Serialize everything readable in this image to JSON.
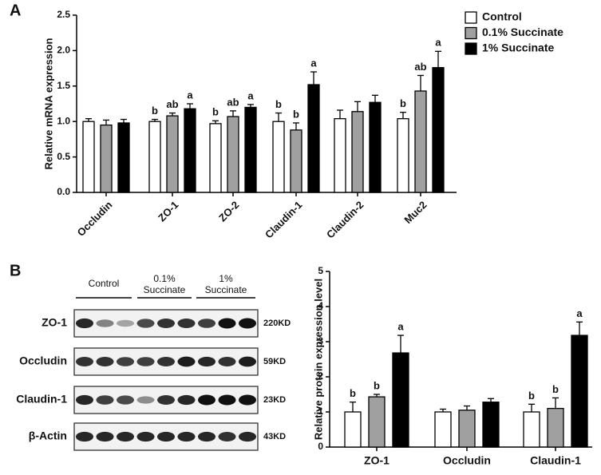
{
  "panels": {
    "a": "A",
    "b": "B"
  },
  "chart_data": [
    {
      "type": "bar",
      "y_label": "Relative mRNA expression",
      "categories": [
        "Occludin",
        "ZO-1",
        "ZO-2",
        "Claudin-1",
        "Claudin-2",
        "Muc2"
      ],
      "series": [
        {
          "name": "Control",
          "color": "#ffffff",
          "values": [
            1.0,
            1.0,
            0.97,
            1.0,
            1.04,
            1.04
          ],
          "errors": [
            0.04,
            0.03,
            0.04,
            0.12,
            0.12,
            0.09
          ],
          "letters": [
            null,
            "b",
            "b",
            "b",
            null,
            "b"
          ]
        },
        {
          "name": "0.1% Succinate",
          "color": "#a0a0a0",
          "values": [
            0.95,
            1.08,
            1.07,
            0.88,
            1.14,
            1.43
          ],
          "errors": [
            0.07,
            0.04,
            0.08,
            0.1,
            0.14,
            0.22
          ],
          "letters": [
            null,
            "ab",
            "ab",
            "b",
            null,
            "ab"
          ]
        },
        {
          "name": "1% Succinate",
          "color": "#000000",
          "values": [
            0.98,
            1.18,
            1.2,
            1.52,
            1.27,
            1.76
          ],
          "errors": [
            0.05,
            0.07,
            0.04,
            0.18,
            0.1,
            0.23
          ],
          "letters": [
            null,
            "a",
            "a",
            "a",
            null,
            "a"
          ]
        }
      ],
      "ylim": [
        0,
        2.5
      ],
      "yticks": [
        {
          "value": 0,
          "label": "0.0"
        },
        0.5,
        {
          "value": 1,
          "label": "1.0"
        },
        1.5,
        {
          "value": 2,
          "label": "2.0"
        },
        2.5
      ],
      "legend": "upper right"
    },
    {
      "type": "bar",
      "y_label": "Relative protein expression level",
      "categories": [
        "ZO-1",
        "Occludin",
        "Claudin-1"
      ],
      "series": [
        {
          "color": "#ffffff",
          "values": [
            1.0,
            1.0,
            1.0
          ],
          "errors": [
            0.28,
            0.08,
            0.22
          ],
          "letters": [
            "b",
            null,
            "b"
          ]
        },
        {
          "color": "#a0a0a0",
          "values": [
            1.43,
            1.05,
            1.1
          ],
          "errors": [
            0.07,
            0.12,
            0.3
          ],
          "letters": [
            "b",
            null,
            "b"
          ]
        },
        {
          "color": "#000000",
          "values": [
            2.68,
            1.28,
            3.18
          ],
          "errors": [
            0.5,
            0.1,
            0.38
          ],
          "letters": [
            "a",
            null,
            "a"
          ]
        }
      ],
      "ylim": [
        0,
        5
      ],
      "yticks": [
        0,
        1,
        2,
        3,
        4,
        5
      ]
    }
  ],
  "blot": {
    "groups": [
      [
        "Control"
      ],
      [
        "0.1%",
        "Succinate"
      ],
      [
        "1%",
        "Succinate"
      ]
    ],
    "rows": [
      {
        "label": "ZO-1",
        "size": "220KD"
      },
      {
        "label": "Occludin",
        "size": "59KD"
      },
      {
        "label": "Claudin-1",
        "size": "23KD"
      },
      {
        "label": "β-Actin",
        "size": "43KD"
      }
    ]
  }
}
